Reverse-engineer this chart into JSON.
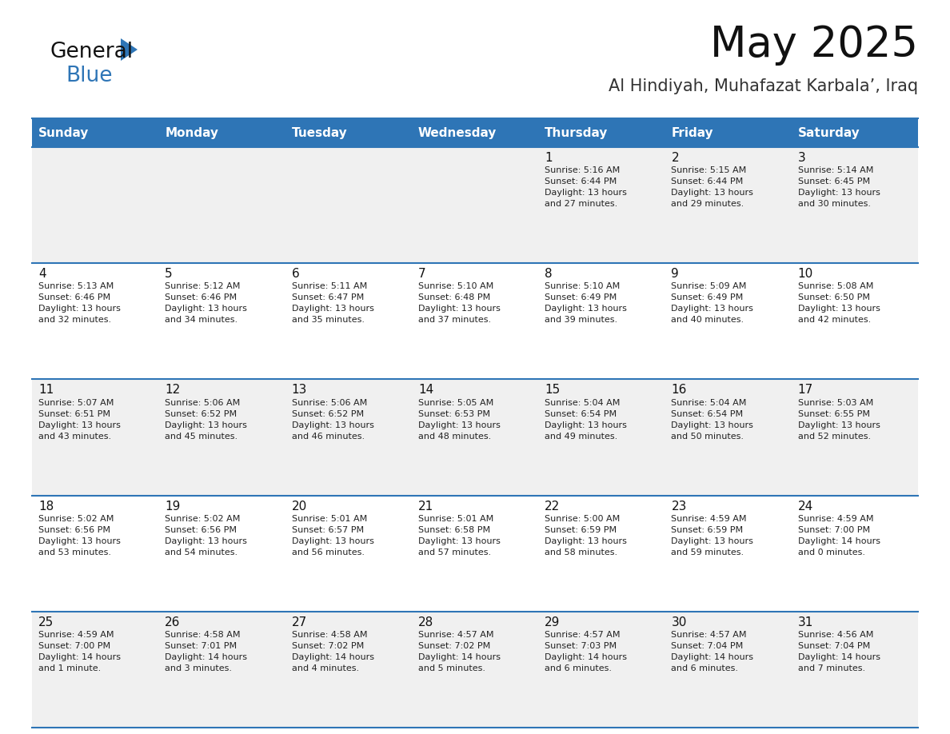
{
  "title": "May 2025",
  "subtitle": "Al Hindiyah, Muhafazat Karbala’, Iraq",
  "days_of_week": [
    "Sunday",
    "Monday",
    "Tuesday",
    "Wednesday",
    "Thursday",
    "Friday",
    "Saturday"
  ],
  "header_bg": "#2E75B6",
  "header_text": "#FFFFFF",
  "row_bg_even": "#F0F0F0",
  "row_bg_odd": "#FFFFFF",
  "separator_color": "#2E75B6",
  "cell_text_color": "#222222",
  "day_number_color": "#111111",
  "title_color": "#111111",
  "subtitle_color": "#333333",
  "logo_general_color": "#111111",
  "logo_blue_color": "#2E75B6",
  "logo_triangle_color": "#2E75B6",
  "calendar": [
    [
      {
        "day": "",
        "sunrise": "",
        "sunset": "",
        "daylight": ""
      },
      {
        "day": "",
        "sunrise": "",
        "sunset": "",
        "daylight": ""
      },
      {
        "day": "",
        "sunrise": "",
        "sunset": "",
        "daylight": ""
      },
      {
        "day": "",
        "sunrise": "",
        "sunset": "",
        "daylight": ""
      },
      {
        "day": "1",
        "sunrise": "5:16 AM",
        "sunset": "6:44 PM",
        "daylight": "13 hours\nand 27 minutes."
      },
      {
        "day": "2",
        "sunrise": "5:15 AM",
        "sunset": "6:44 PM",
        "daylight": "13 hours\nand 29 minutes."
      },
      {
        "day": "3",
        "sunrise": "5:14 AM",
        "sunset": "6:45 PM",
        "daylight": "13 hours\nand 30 minutes."
      }
    ],
    [
      {
        "day": "4",
        "sunrise": "5:13 AM",
        "sunset": "6:46 PM",
        "daylight": "13 hours\nand 32 minutes."
      },
      {
        "day": "5",
        "sunrise": "5:12 AM",
        "sunset": "6:46 PM",
        "daylight": "13 hours\nand 34 minutes."
      },
      {
        "day": "6",
        "sunrise": "5:11 AM",
        "sunset": "6:47 PM",
        "daylight": "13 hours\nand 35 minutes."
      },
      {
        "day": "7",
        "sunrise": "5:10 AM",
        "sunset": "6:48 PM",
        "daylight": "13 hours\nand 37 minutes."
      },
      {
        "day": "8",
        "sunrise": "5:10 AM",
        "sunset": "6:49 PM",
        "daylight": "13 hours\nand 39 minutes."
      },
      {
        "day": "9",
        "sunrise": "5:09 AM",
        "sunset": "6:49 PM",
        "daylight": "13 hours\nand 40 minutes."
      },
      {
        "day": "10",
        "sunrise": "5:08 AM",
        "sunset": "6:50 PM",
        "daylight": "13 hours\nand 42 minutes."
      }
    ],
    [
      {
        "day": "11",
        "sunrise": "5:07 AM",
        "sunset": "6:51 PM",
        "daylight": "13 hours\nand 43 minutes."
      },
      {
        "day": "12",
        "sunrise": "5:06 AM",
        "sunset": "6:52 PM",
        "daylight": "13 hours\nand 45 minutes."
      },
      {
        "day": "13",
        "sunrise": "5:06 AM",
        "sunset": "6:52 PM",
        "daylight": "13 hours\nand 46 minutes."
      },
      {
        "day": "14",
        "sunrise": "5:05 AM",
        "sunset": "6:53 PM",
        "daylight": "13 hours\nand 48 minutes."
      },
      {
        "day": "15",
        "sunrise": "5:04 AM",
        "sunset": "6:54 PM",
        "daylight": "13 hours\nand 49 minutes."
      },
      {
        "day": "16",
        "sunrise": "5:04 AM",
        "sunset": "6:54 PM",
        "daylight": "13 hours\nand 50 minutes."
      },
      {
        "day": "17",
        "sunrise": "5:03 AM",
        "sunset": "6:55 PM",
        "daylight": "13 hours\nand 52 minutes."
      }
    ],
    [
      {
        "day": "18",
        "sunrise": "5:02 AM",
        "sunset": "6:56 PM",
        "daylight": "13 hours\nand 53 minutes."
      },
      {
        "day": "19",
        "sunrise": "5:02 AM",
        "sunset": "6:56 PM",
        "daylight": "13 hours\nand 54 minutes."
      },
      {
        "day": "20",
        "sunrise": "5:01 AM",
        "sunset": "6:57 PM",
        "daylight": "13 hours\nand 56 minutes."
      },
      {
        "day": "21",
        "sunrise": "5:01 AM",
        "sunset": "6:58 PM",
        "daylight": "13 hours\nand 57 minutes."
      },
      {
        "day": "22",
        "sunrise": "5:00 AM",
        "sunset": "6:59 PM",
        "daylight": "13 hours\nand 58 minutes."
      },
      {
        "day": "23",
        "sunrise": "4:59 AM",
        "sunset": "6:59 PM",
        "daylight": "13 hours\nand 59 minutes."
      },
      {
        "day": "24",
        "sunrise": "4:59 AM",
        "sunset": "7:00 PM",
        "daylight": "14 hours\nand 0 minutes."
      }
    ],
    [
      {
        "day": "25",
        "sunrise": "4:59 AM",
        "sunset": "7:00 PM",
        "daylight": "14 hours\nand 1 minute."
      },
      {
        "day": "26",
        "sunrise": "4:58 AM",
        "sunset": "7:01 PM",
        "daylight": "14 hours\nand 3 minutes."
      },
      {
        "day": "27",
        "sunrise": "4:58 AM",
        "sunset": "7:02 PM",
        "daylight": "14 hours\nand 4 minutes."
      },
      {
        "day": "28",
        "sunrise": "4:57 AM",
        "sunset": "7:02 PM",
        "daylight": "14 hours\nand 5 minutes."
      },
      {
        "day": "29",
        "sunrise": "4:57 AM",
        "sunset": "7:03 PM",
        "daylight": "14 hours\nand 6 minutes."
      },
      {
        "day": "30",
        "sunrise": "4:57 AM",
        "sunset": "7:04 PM",
        "daylight": "14 hours\nand 6 minutes."
      },
      {
        "day": "31",
        "sunrise": "4:56 AM",
        "sunset": "7:04 PM",
        "daylight": "14 hours\nand 7 minutes."
      }
    ]
  ]
}
